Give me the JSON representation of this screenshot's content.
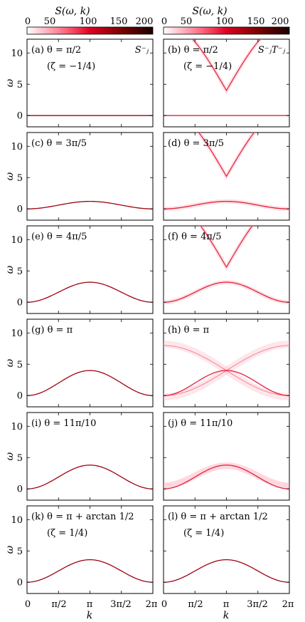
{
  "colorbar": {
    "label": "S(ω, k)",
    "ticks": [
      "0",
      "50",
      "100",
      "150",
      "200"
    ],
    "range": [
      0,
      200
    ],
    "colors": [
      "#ffffff",
      "#ff0a2a",
      "#8b0000",
      "#1a0000"
    ]
  },
  "axes": {
    "ylabel": "ω",
    "xlabel": "k",
    "y_ticks": [
      "0",
      "5",
      "10"
    ],
    "x_ticks": [
      "0",
      "π/2",
      "π",
      "3π/2",
      "2π"
    ]
  },
  "panels": [
    {
      "label": "(a) θ = π/2",
      "sublabel": "(ζ = −1/4)",
      "corner": "S⁻ⱼ"
    },
    {
      "label": "(b) θ = π/2",
      "sublabel": "(ζ = −1/4)",
      "corner": "S⁻ⱼT⁻ⱼ"
    },
    {
      "label": "(c) θ = 3π/5",
      "sublabel": "",
      "corner": ""
    },
    {
      "label": "(d) θ = 3π/5",
      "sublabel": "",
      "corner": ""
    },
    {
      "label": "(e) θ = 4π/5",
      "sublabel": "",
      "corner": ""
    },
    {
      "label": "(f) θ = 4π/5",
      "sublabel": "",
      "corner": ""
    },
    {
      "label": "(g) θ = π",
      "sublabel": "",
      "corner": ""
    },
    {
      "label": "(h) θ = π",
      "sublabel": "",
      "corner": ""
    },
    {
      "label": "(i) θ = 11π/10",
      "sublabel": "",
      "corner": ""
    },
    {
      "label": "(j) θ = 11π/10",
      "sublabel": "",
      "corner": ""
    },
    {
      "label": "(k) θ = π + arctan 1/2",
      "sublabel": "(ζ = 1/4)",
      "corner": ""
    },
    {
      "label": "(l) θ = π + arctan 1/2",
      "sublabel": "(ζ = 1/4)",
      "corner": ""
    }
  ],
  "chart_data": {
    "type": "heatmap",
    "x_range": [
      0,
      6.2832
    ],
    "y_range": [
      -1.8,
      12.2
    ],
    "lower_band_peak": {
      "a": 0,
      "b": 0,
      "c": 1.2,
      "d": 1.2,
      "e": 3.2,
      "f": 3.2,
      "g": 4.0,
      "h": 4.0,
      "i": 3.8,
      "j": 3.8,
      "k": 3.6,
      "l": 3.6
    },
    "upper_band_min": {
      "b": 4.0,
      "d": 5.2,
      "f": 5.6
    }
  }
}
